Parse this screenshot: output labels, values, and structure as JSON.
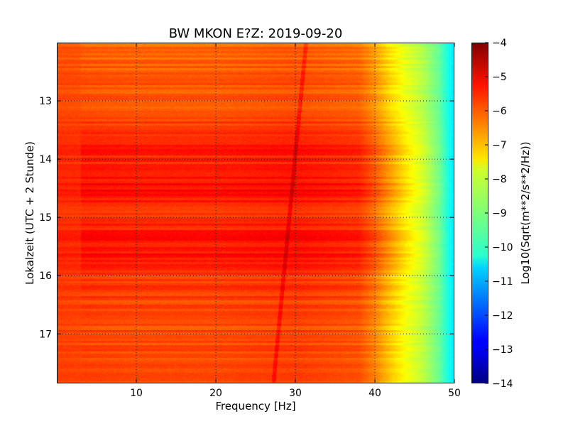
{
  "chart_data": {
    "type": "heatmap",
    "title": "BW MKON E?Z: 2019-09-20",
    "xlabel": "Frequency [Hz]",
    "ylabel": "Lokalzeit (UTC + 2 Stunde)",
    "xlim": [
      0,
      50
    ],
    "ylim": [
      17.85,
      12.0
    ],
    "y_inverted": true,
    "x_ticks": [
      10,
      20,
      30,
      40,
      50
    ],
    "x_tick_labels": [
      "10",
      "20",
      "30",
      "40",
      "50"
    ],
    "y_ticks": [
      13,
      14,
      15,
      16,
      17
    ],
    "y_tick_labels": [
      "13",
      "14",
      "15",
      "16",
      "17"
    ],
    "grid": true,
    "colormap": "jet",
    "colorbar": {
      "label": "Log10(Sqrt(m**2/s**2/Hz))",
      "range": [
        -14,
        -4
      ],
      "ticks": [
        -4,
        -5,
        -6,
        -7,
        -8,
        -9,
        -10,
        -11,
        -12,
        -13,
        -14
      ],
      "tick_labels": [
        "−4",
        "−5",
        "−6",
        "−7",
        "−8",
        "−9",
        "−10",
        "−11",
        "−12",
        "−13",
        "−14"
      ]
    },
    "spectral_profile": {
      "frequency_hz": [
        0,
        10,
        20,
        30,
        38,
        40,
        42,
        44,
        46,
        48,
        50
      ],
      "level": [
        -5.9,
        -6.0,
        -6.0,
        -5.9,
        -6.1,
        -6.6,
        -7.3,
        -7.9,
        -8.4,
        -9.2,
        -10.6
      ]
    },
    "time_band_levels": {
      "hours": [
        12.0,
        13.3,
        13.75,
        14.0,
        14.3,
        14.5,
        14.8,
        15.0,
        15.4,
        15.7,
        16.0,
        16.3,
        16.8,
        17.3,
        17.85
      ],
      "offset": [
        -0.3,
        0.0,
        0.6,
        0.35,
        0.55,
        0.6,
        0.4,
        0.25,
        0.55,
        0.6,
        0.2,
        0.1,
        0.0,
        0.0,
        0.0
      ]
    },
    "features": [
      {
        "label": "narrow spectral line",
        "frequency_hz_at_top": 31.3,
        "frequency_hz_at_bottom": 27.2
      }
    ]
  }
}
